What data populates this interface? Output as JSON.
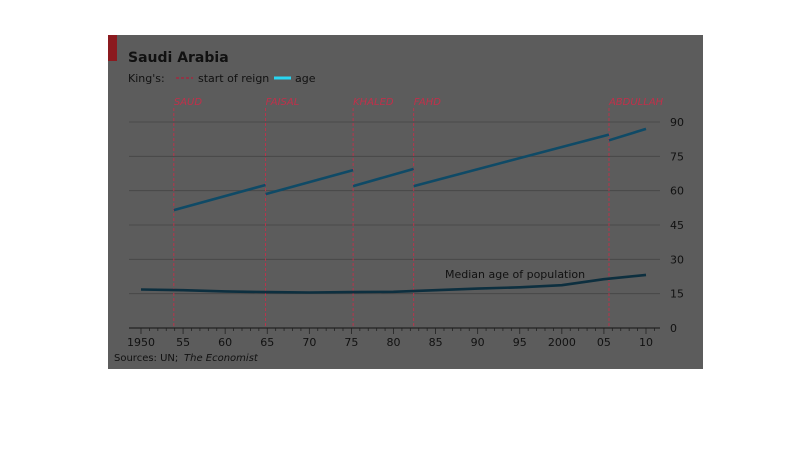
{
  "chart_data": {
    "type": "line",
    "title": "Saudi Arabia",
    "subtitle": "",
    "source": "Sources: UN; The Economist",
    "legend": {
      "prefix": "King's:",
      "items": [
        {
          "label": "start of reign",
          "style": "dashed",
          "color": "#b0203a"
        },
        {
          "label": "age",
          "style": "solid",
          "color": "#29d6f2"
        }
      ],
      "placement": "top-left"
    },
    "xlim": [
      1950,
      2011
    ],
    "ylim": [
      0,
      90
    ],
    "x_ticks": [
      {
        "value": 1950,
        "label": "1950"
      },
      {
        "value": 1955,
        "label": "55"
      },
      {
        "value": 1960,
        "label": "60"
      },
      {
        "value": 1965,
        "label": "65"
      },
      {
        "value": 1970,
        "label": "70"
      },
      {
        "value": 1975,
        "label": "75"
      },
      {
        "value": 1980,
        "label": "80"
      },
      {
        "value": 1985,
        "label": "85"
      },
      {
        "value": 1990,
        "label": "90"
      },
      {
        "value": 1995,
        "label": "95"
      },
      {
        "value": 2000,
        "label": "2000"
      },
      {
        "value": 2005,
        "label": "05"
      },
      {
        "value": 2010,
        "label": "10"
      }
    ],
    "y_ticks": [
      {
        "value": 0,
        "label": "0"
      },
      {
        "value": 15,
        "label": "15"
      },
      {
        "value": 30,
        "label": "30"
      },
      {
        "value": 45,
        "label": "45"
      },
      {
        "value": 60,
        "label": "60"
      },
      {
        "value": 75,
        "label": "75"
      },
      {
        "value": 90,
        "label": "90"
      }
    ],
    "axis_side": "right",
    "grid": true,
    "reigns": [
      {
        "king": "SAUD",
        "start": 1953.9
      },
      {
        "king": "FAISAL",
        "start": 1964.8
      },
      {
        "king": "KHALED",
        "start": 1975.2
      },
      {
        "king": "FAHD",
        "start": 1982.4
      },
      {
        "king": "ABDULLAH",
        "start": 2005.6
      }
    ],
    "series": [
      {
        "name": "age",
        "color": "#29d6f2",
        "segments": [
          {
            "king": "SAUD",
            "x": [
              1953.9,
              1964.8
            ],
            "y": [
              51.5,
              62.5
            ]
          },
          {
            "king": "FAISAL",
            "x": [
              1964.8,
              1975.2
            ],
            "y": [
              58.5,
              69
            ]
          },
          {
            "king": "KHALED",
            "x": [
              1975.2,
              1982.4
            ],
            "y": [
              62,
              69.5
            ]
          },
          {
            "king": "FAHD",
            "x": [
              1982.4,
              2005.6
            ],
            "y": [
              62,
              84.5
            ]
          },
          {
            "king": "ABDULLAH",
            "x": [
              2005.6,
              2010
            ],
            "y": [
              82,
              87
            ]
          }
        ]
      },
      {
        "name": "Median age of population",
        "color": "#0d2f3f",
        "x": [
          1950,
          1955,
          1960,
          1965,
          1970,
          1975,
          1980,
          1985,
          1990,
          1995,
          2000,
          2005,
          2010
        ],
        "y": [
          16.8,
          16.5,
          16,
          15.7,
          15.5,
          15.7,
          15.8,
          16.5,
          17.2,
          17.8,
          18.7,
          21.3,
          23.2
        ]
      }
    ],
    "annotations": [
      {
        "text": "Median age of population"
      }
    ]
  }
}
